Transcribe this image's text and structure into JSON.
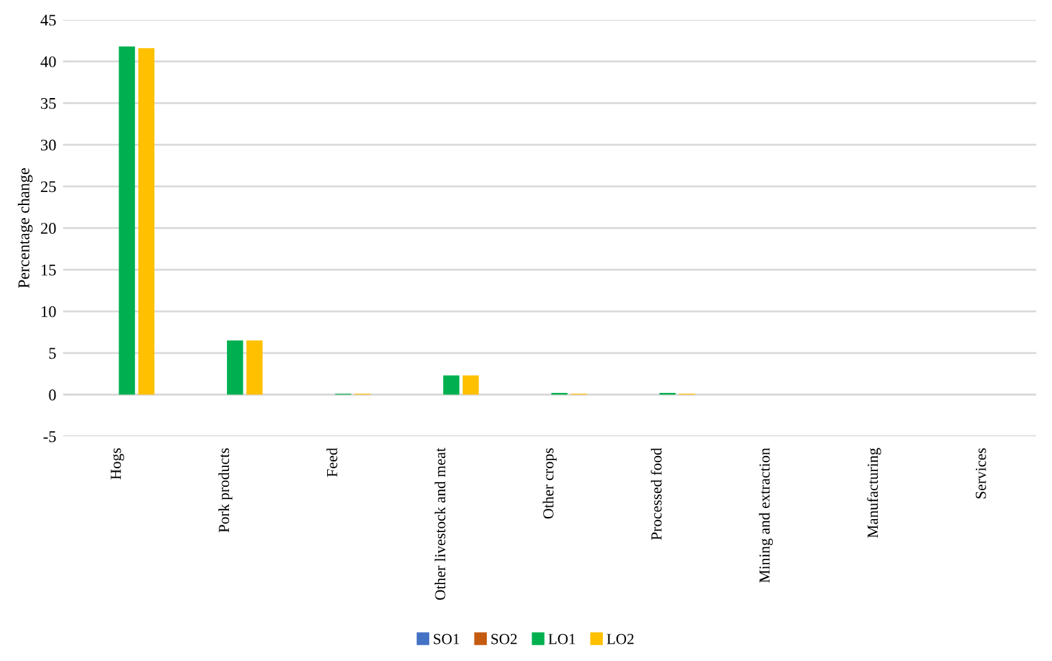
{
  "chart_data": {
    "type": "bar",
    "ylabel": "Percentage change",
    "categories": [
      "Hogs",
      "Pork products",
      "Feed",
      "Other livestock and meat",
      "Other crops",
      "Processed food",
      "Mining and extraction",
      "Manufacturing",
      "Services"
    ],
    "series": [
      {
        "name": "SO1",
        "color": "#4472c4",
        "values": [
          0,
          0,
          0,
          0,
          0,
          0,
          0,
          0,
          0
        ]
      },
      {
        "name": "SO2",
        "color": "#c55a11",
        "values": [
          0,
          0,
          0,
          0,
          0,
          0,
          0,
          0,
          0
        ]
      },
      {
        "name": "LO1",
        "color": "#00b050",
        "values": [
          41.8,
          6.5,
          0.1,
          2.3,
          0.2,
          0.2,
          0,
          0,
          0
        ]
      },
      {
        "name": "LO2",
        "color": "#ffc000",
        "values": [
          41.6,
          6.5,
          0.1,
          2.3,
          0.1,
          0.1,
          0,
          0,
          0
        ]
      }
    ],
    "ylim": [
      -5,
      45
    ],
    "yticks": [
      -5,
      0,
      5,
      10,
      15,
      20,
      25,
      30,
      35,
      40,
      45
    ],
    "grid": "y",
    "legend": "bottom"
  }
}
